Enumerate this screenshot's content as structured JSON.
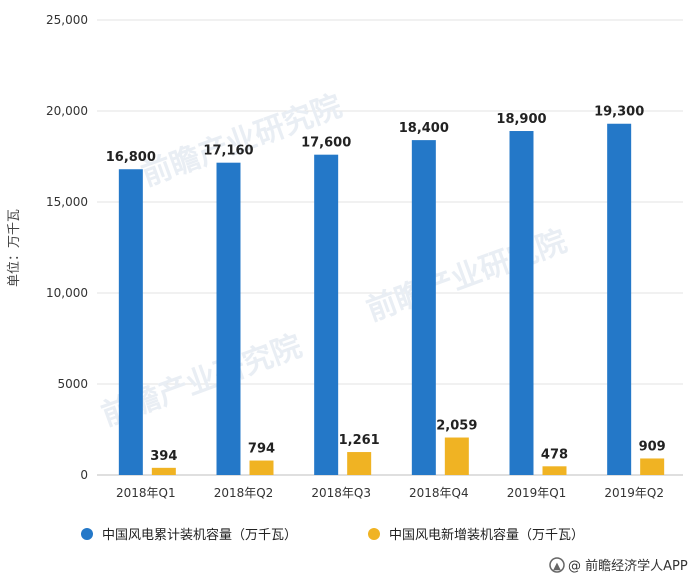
{
  "chart_data": {
    "type": "bar",
    "title": "",
    "ylabel": "单位：万千瓦",
    "xlabel": "",
    "ylim": [
      0,
      25000
    ],
    "y_ticks": [
      {
        "value": 0,
        "label": "0"
      },
      {
        "value": 5000,
        "label": "5000"
      },
      {
        "value": 10000,
        "label": "10,000"
      },
      {
        "value": 15000,
        "label": "15,000"
      },
      {
        "value": 20000,
        "label": "20,000"
      },
      {
        "value": 25000,
        "label": "25,000"
      }
    ],
    "grid": true,
    "legend_position": "bottom-left",
    "categories": [
      "2018年Q1",
      "2018年Q2",
      "2018年Q3",
      "2018年Q4",
      "2019年Q1",
      "2019年Q2"
    ],
    "series": [
      {
        "name": "中国风电累计装机容量（万千瓦）",
        "color": "#2478C8",
        "values": [
          16800,
          17160,
          17600,
          18400,
          18900,
          19300
        ],
        "labels": [
          "16,800",
          "17,160",
          "17,600",
          "18,400",
          "18,900",
          "19,300"
        ]
      },
      {
        "name": "中国风电新增装机容量（万千瓦）",
        "color": "#F0B323",
        "values": [
          394,
          794,
          1261,
          2059,
          478,
          909
        ],
        "labels": [
          "394",
          "794",
          "1,261",
          "2,059",
          "478",
          "909"
        ]
      }
    ]
  },
  "source_credit": "@ 前瞻经济学人APP",
  "watermark": "前瞻产业研究院"
}
